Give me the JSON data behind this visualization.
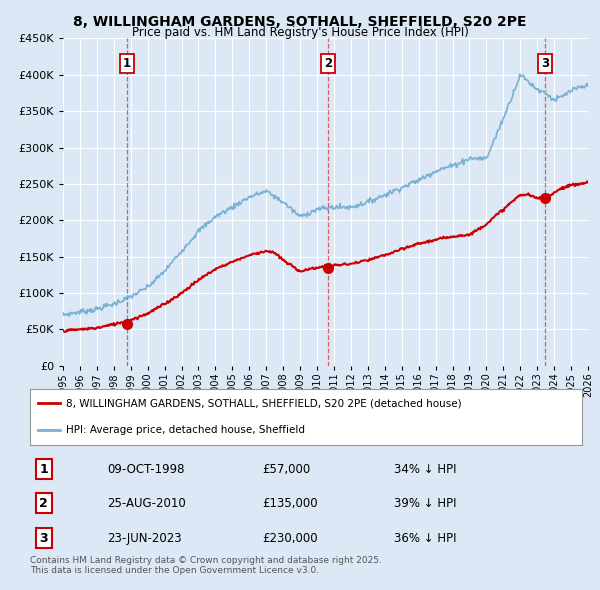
{
  "title": "8, WILLINGHAM GARDENS, SOTHALL, SHEFFIELD, S20 2PE",
  "subtitle": "Price paid vs. HM Land Registry's House Price Index (HPI)",
  "bg_color": "#dce8f5",
  "plot_bg_color": "#dce8f5",
  "grid_color": "#ffffff",
  "red_color": "#cc0000",
  "blue_color": "#7ab0d4",
  "sale_dates": [
    1998.78,
    2010.65,
    2023.48
  ],
  "sale_prices": [
    57000,
    135000,
    230000
  ],
  "sale_labels": [
    "1",
    "2",
    "3"
  ],
  "legend_entries": [
    "8, WILLINGHAM GARDENS, SOTHALL, SHEFFIELD, S20 2PE (detached house)",
    "HPI: Average price, detached house, Sheffield"
  ],
  "table_rows": [
    [
      "1",
      "09-OCT-1998",
      "£57,000",
      "34% ↓ HPI"
    ],
    [
      "2",
      "25-AUG-2010",
      "£135,000",
      "39% ↓ HPI"
    ],
    [
      "3",
      "23-JUN-2023",
      "£230,000",
      "36% ↓ HPI"
    ]
  ],
  "footnote": "Contains HM Land Registry data © Crown copyright and database right 2025.\nThis data is licensed under the Open Government Licence v3.0.",
  "ylim": [
    0,
    450000
  ],
  "yticks": [
    0,
    50000,
    100000,
    150000,
    200000,
    250000,
    300000,
    350000,
    400000,
    450000
  ],
  "xmin": 1995.0,
  "xmax": 2026.0,
  "hpi_anchors_x": [
    1995,
    1996,
    1997,
    1998,
    1999,
    2000,
    2001,
    2002,
    2003,
    2004,
    2005,
    2006,
    2007,
    2008,
    2009,
    2010,
    2011,
    2012,
    2013,
    2014,
    2015,
    2016,
    2017,
    2018,
    2019,
    2020,
    2021,
    2022,
    2022.5,
    2023,
    2023.5,
    2024,
    2024.5,
    2025,
    2025.5,
    2026
  ],
  "hpi_anchors_y": [
    70000,
    74000,
    78000,
    85000,
    95000,
    108000,
    130000,
    158000,
    185000,
    205000,
    218000,
    232000,
    240000,
    225000,
    205000,
    215000,
    218000,
    218000,
    225000,
    235000,
    245000,
    255000,
    268000,
    275000,
    285000,
    285000,
    340000,
    400000,
    390000,
    380000,
    375000,
    365000,
    370000,
    378000,
    382000,
    385000
  ],
  "red_anchors_x": [
    1995,
    1996,
    1997,
    1998,
    1999,
    2000,
    2001,
    2002,
    2003,
    2004,
    2005,
    2006,
    2007,
    2007.5,
    2008,
    2009,
    2010,
    2011,
    2012,
    2013,
    2014,
    2015,
    2016,
    2017,
    2018,
    2019,
    2020,
    2021,
    2022,
    2022.5,
    2023,
    2023.5,
    2024,
    2024.5,
    2025,
    2025.5,
    2026
  ],
  "red_anchors_y": [
    48000,
    50000,
    52000,
    57000,
    63000,
    72000,
    85000,
    100000,
    118000,
    133000,
    143000,
    152000,
    158000,
    155000,
    145000,
    130000,
    135000,
    138000,
    140000,
    145000,
    152000,
    160000,
    168000,
    173000,
    178000,
    180000,
    195000,
    215000,
    235000,
    235000,
    230000,
    232000,
    238000,
    245000,
    248000,
    250000,
    252000
  ]
}
